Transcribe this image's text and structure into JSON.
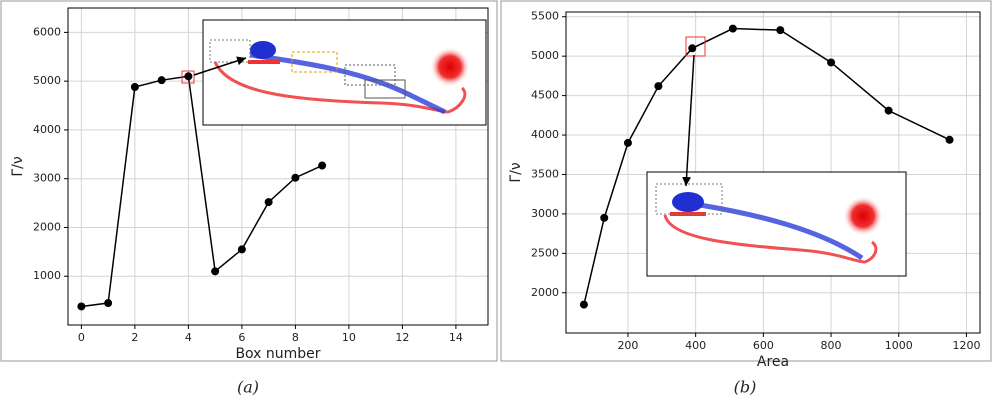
{
  "chart_data": [
    {
      "type": "line",
      "xlabel": "Box number",
      "ylabel": "Γ/ν",
      "caption": "(a)",
      "color": "#000000",
      "grid": true,
      "x": [
        0,
        1,
        2,
        3,
        4,
        5,
        6,
        7,
        8,
        9
      ],
      "values": [
        380,
        450,
        4880,
        5020,
        5100,
        1100,
        1550,
        2520,
        3020,
        3270
      ],
      "xlim": [
        -0.5,
        15.2
      ],
      "ylim": [
        0,
        6500
      ],
      "xticks": [
        0,
        2,
        4,
        6,
        8,
        10,
        12,
        14
      ],
      "yticks": [
        1000,
        2000,
        3000,
        4000,
        5000,
        6000
      ]
    },
    {
      "type": "line",
      "xlabel": "Area",
      "ylabel": "Γ/ν",
      "caption": "(b)",
      "color": "#000000",
      "grid": true,
      "x": [
        70,
        130,
        200,
        290,
        390,
        510,
        650,
        800,
        970,
        1150
      ],
      "values": [
        1850,
        2950,
        3900,
        4620,
        5100,
        5350,
        5330,
        4920,
        4310,
        3940
      ],
      "xlim": [
        17,
        1240
      ],
      "ylim": [
        1490,
        5560
      ],
      "xticks": [
        200,
        400,
        600,
        800,
        1000,
        1200
      ],
      "yticks": [
        2000,
        2500,
        3000,
        3500,
        4000,
        4500,
        5000,
        5500
      ]
    }
  ]
}
